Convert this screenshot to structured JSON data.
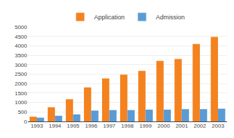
{
  "chart_data": {
    "type": "bar",
    "categories": [
      "1993",
      "1994",
      "1995",
      "1996",
      "1997",
      "1998",
      "1999",
      "2000",
      "2001",
      "2002",
      "2003"
    ],
    "series": [
      {
        "name": "Application",
        "color": "#F4821F",
        "values": [
          250,
          750,
          1175,
          1800,
          2275,
          2475,
          2675,
          3200,
          3300,
          4100,
          4475
        ]
      },
      {
        "name": "Admission",
        "color": "#5B9BD5",
        "values": [
          200,
          300,
          375,
          575,
          600,
          600,
          625,
          625,
          650,
          650,
          675
        ]
      }
    ],
    "ylim": [
      0,
      5000
    ],
    "yticks": [
      0,
      500,
      1000,
      1500,
      2000,
      2500,
      3000,
      3500,
      4000,
      4500,
      5000
    ],
    "grid": true,
    "legend": "top"
  }
}
